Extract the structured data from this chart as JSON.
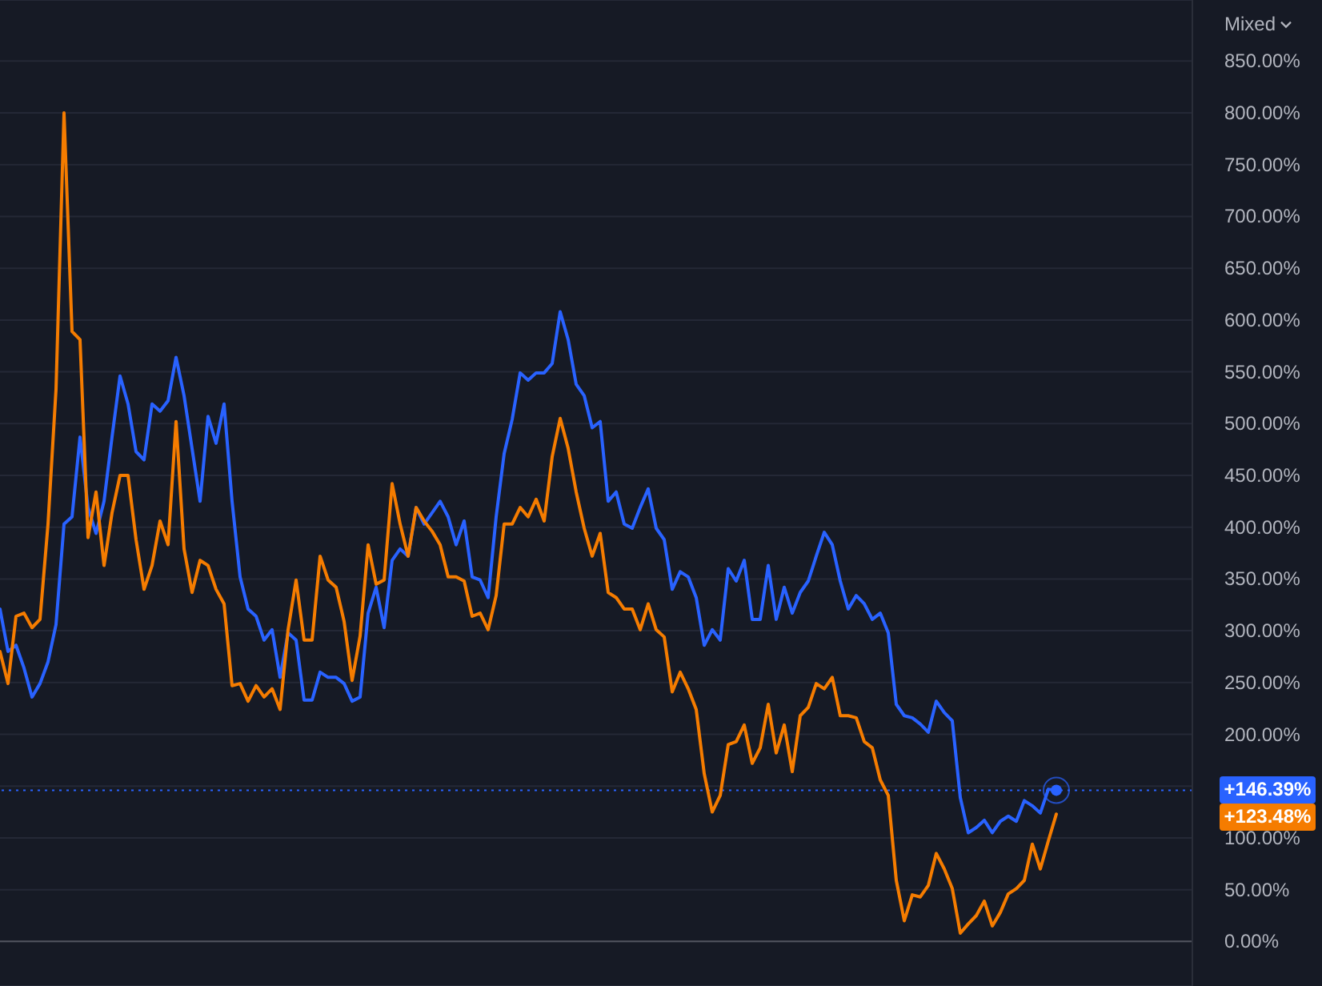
{
  "chart_data": {
    "type": "line",
    "categories": [
      null,
      null,
      null,
      null,
      null,
      null,
      null,
      null,
      null,
      null,
      null,
      null,
      null,
      null,
      null,
      null,
      null,
      null,
      null,
      null,
      null,
      null,
      null,
      null,
      null,
      null,
      null,
      null,
      null,
      null,
      null,
      null,
      null,
      null,
      null,
      null,
      null,
      null,
      null,
      null,
      null,
      null,
      null,
      null,
      null,
      null,
      null,
      null,
      null,
      null,
      null,
      null,
      null,
      null,
      null,
      null,
      null,
      null,
      null,
      null,
      null,
      null,
      null,
      null,
      null,
      null,
      null,
      null,
      null,
      null,
      null,
      null,
      null,
      null,
      null,
      null,
      null,
      null,
      null,
      null,
      null,
      null,
      null,
      null,
      null,
      null,
      null,
      null,
      null,
      null,
      null,
      null,
      null,
      null,
      null,
      null,
      null,
      null,
      null,
      null,
      null,
      null,
      null,
      null,
      null,
      null,
      null,
      null,
      null,
      null,
      null,
      null,
      null,
      null,
      null,
      null,
      null,
      null,
      null,
      null,
      null,
      null,
      null,
      null,
      null,
      null,
      null,
      null,
      null,
      null,
      null,
      null,
      null,
      null,
      null,
      null,
      null,
      null,
      null,
      null,
      null,
      null,
      null,
      null,
      null,
      null,
      null,
      null,
      null,
      null
    ],
    "series": [
      {
        "color": "#2962ff",
        "values": [
          321,
          280,
          286,
          264,
          236,
          249,
          270,
          306,
          403,
          410,
          487,
          419,
          394,
          425,
          487,
          546,
          519,
          473,
          465,
          519,
          512,
          522,
          564,
          527,
          476,
          425,
          507,
          481,
          519,
          425,
          352,
          321,
          314,
          291,
          301,
          255,
          298,
          291,
          233,
          233,
          260,
          255,
          255,
          249,
          232,
          236,
          317,
          342,
          303,
          368,
          379,
          372,
          419,
          403,
          414,
          425,
          410,
          383,
          406,
          352,
          349,
          332,
          410,
          471,
          504,
          549,
          542,
          549,
          549,
          558,
          608,
          581,
          538,
          527,
          496,
          502,
          425,
          434,
          403,
          399,
          419,
          437,
          399,
          388,
          340,
          357,
          352,
          332,
          286,
          301,
          291,
          360,
          348,
          368,
          311,
          311,
          363,
          311,
          342,
          317,
          337,
          348,
          372,
          395,
          383,
          348,
          321,
          334,
          326,
          311,
          317,
          298,
          229,
          218,
          216,
          210,
          202,
          232,
          221,
          213,
          139,
          105,
          110,
          117,
          105,
          116,
          121,
          116,
          136,
          131,
          124,
          147,
          146,
          null,
          null,
          null,
          null,
          null,
          null,
          null,
          null,
          null,
          null,
          null,
          null,
          null,
          null,
          null,
          null,
          null
        ]
      },
      {
        "color": "#f57c00",
        "values": [
          280,
          249,
          314,
          317,
          303,
          311,
          403,
          533,
          800,
          589,
          581,
          390,
          434,
          363,
          414,
          450,
          450,
          388,
          340,
          363,
          406,
          383,
          502,
          379,
          337,
          368,
          363,
          340,
          326,
          247,
          249,
          232,
          247,
          236,
          244,
          224,
          301,
          349,
          291,
          291,
          372,
          349,
          342,
          309,
          252,
          295,
          383,
          345,
          349,
          442,
          403,
          372,
          419,
          406,
          396,
          383,
          352,
          352,
          348,
          314,
          317,
          301,
          334,
          403,
          403,
          419,
          410,
          427,
          406,
          468,
          505,
          476,
          434,
          399,
          372,
          394,
          337,
          332,
          321,
          321,
          301,
          326,
          301,
          294,
          241,
          260,
          244,
          224,
          162,
          125,
          141,
          190,
          193,
          209,
          172,
          187,
          229,
          182,
          209,
          164,
          218,
          226,
          249,
          244,
          255,
          218,
          218,
          216,
          193,
          187,
          156,
          141,
          59,
          20,
          45,
          43,
          54,
          85,
          70,
          51,
          8,
          17,
          25,
          39,
          15,
          28,
          46,
          51,
          59,
          94,
          70,
          97,
          123,
          null,
          null,
          null,
          null,
          null,
          null,
          null,
          null,
          null,
          null,
          null,
          null,
          null,
          null,
          null,
          null,
          null
        ]
      }
    ],
    "ylim": [
      -43,
      909
    ],
    "yticks": [
      {
        "value": 0,
        "label": "0.00%"
      },
      {
        "value": 50,
        "label": "50.00%"
      },
      {
        "value": 100,
        "label": "100.00%"
      },
      {
        "value": 150,
        "label": null
      },
      {
        "value": 200,
        "label": "200.00%"
      },
      {
        "value": 250,
        "label": "250.00%"
      },
      {
        "value": 300,
        "label": "300.00%"
      },
      {
        "value": 350,
        "label": "350.00%"
      },
      {
        "value": 400,
        "label": "400.00%"
      },
      {
        "value": 450,
        "label": "450.00%"
      },
      {
        "value": 500,
        "label": "500.00%"
      },
      {
        "value": 550,
        "label": "550.00%"
      },
      {
        "value": 600,
        "label": "600.00%"
      },
      {
        "value": 650,
        "label": "650.00%"
      },
      {
        "value": 700,
        "label": "700.00%"
      },
      {
        "value": 750,
        "label": "750.00%"
      },
      {
        "value": 800,
        "label": "800.00%"
      },
      {
        "value": 850,
        "label": "850.00%"
      }
    ],
    "grid": "y",
    "tick_labels": "y",
    "ref_lines": [
      {
        "axis": "y",
        "value": 0,
        "color": "#50535e",
        "line_style": "solid"
      },
      {
        "axis": "y",
        "value": 146,
        "color": "#2962ff",
        "line_style": "dotted"
      }
    ],
    "annotations": [
      "Mixed",
      "+146.39%",
      "+123.48%"
    ]
  }
}
